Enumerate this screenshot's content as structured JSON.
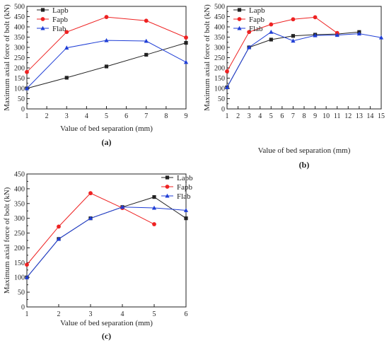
{
  "chart_data": [
    {
      "type": "line",
      "panel_label": "(a)",
      "xlabel": "Value of bed separation (mm)",
      "ylabel": "Maximum axial force of bolt (kN)",
      "xlim": [
        1,
        9
      ],
      "ylim": [
        0,
        500
      ],
      "xticks": [
        1,
        2,
        3,
        4,
        5,
        6,
        7,
        8,
        9
      ],
      "yticks": [
        0,
        50,
        100,
        150,
        200,
        250,
        300,
        350,
        400,
        450,
        500
      ],
      "legend_position": "top-left",
      "series": [
        {
          "name": "Lapb",
          "color": "#222222",
          "marker": "square",
          "x": [
            1,
            3,
            5,
            7,
            9
          ],
          "values": [
            100,
            152,
            207,
            264,
            322
          ]
        },
        {
          "name": "Fapb",
          "color": "#ee2222",
          "marker": "circle",
          "x": [
            1,
            3,
            5,
            7,
            9
          ],
          "values": [
            180,
            375,
            448,
            430,
            348
          ]
        },
        {
          "name": "Flab",
          "color": "#1f3ed6",
          "marker": "triangle",
          "x": [
            1,
            3,
            5,
            7,
            9
          ],
          "values": [
            100,
            298,
            334,
            331,
            228
          ]
        }
      ]
    },
    {
      "type": "line",
      "panel_label": "(b)",
      "xlabel": "Value of bed separation (mm)",
      "ylabel": "Maximum axial force of bolt (kN)",
      "xlim": [
        1,
        15
      ],
      "ylim": [
        0,
        500
      ],
      "xticks": [
        1,
        2,
        3,
        4,
        5,
        6,
        7,
        8,
        9,
        10,
        11,
        12,
        13,
        14,
        15
      ],
      "yticks": [
        0,
        50,
        100,
        150,
        200,
        250,
        300,
        350,
        400,
        450,
        500
      ],
      "legend_position": "top-left",
      "series": [
        {
          "name": "Lapb",
          "color": "#222222",
          "marker": "square",
          "x": [
            1,
            3,
            5,
            7,
            9,
            11,
            13
          ],
          "values": [
            105,
            300,
            338,
            356,
            362,
            365,
            375
          ]
        },
        {
          "name": "Fapb",
          "color": "#ee2222",
          "marker": "circle",
          "x": [
            1,
            3,
            5,
            7,
            9,
            11
          ],
          "values": [
            183,
            375,
            412,
            437,
            447,
            370
          ]
        },
        {
          "name": "Flab",
          "color": "#1f3ed6",
          "marker": "triangle",
          "x": [
            1,
            3,
            5,
            7,
            9,
            11,
            13,
            15
          ],
          "values": [
            105,
            300,
            375,
            332,
            358,
            360,
            367,
            348
          ]
        }
      ]
    },
    {
      "type": "line",
      "panel_label": "(c)",
      "xlabel": "Value of bed separation (mm)",
      "ylabel": "Maximum axial force of bolt (kN)",
      "xlim": [
        1,
        6
      ],
      "ylim": [
        0,
        450
      ],
      "xticks": [
        1,
        2,
        3,
        4,
        5,
        6
      ],
      "yticks": [
        0,
        50,
        100,
        150,
        200,
        250,
        300,
        350,
        400,
        450
      ],
      "legend_position": "top-right",
      "series": [
        {
          "name": "Lapb",
          "color": "#222222",
          "marker": "square",
          "x": [
            1,
            2,
            3,
            4,
            5,
            6
          ],
          "values": [
            100,
            230,
            300,
            338,
            372,
            300
          ]
        },
        {
          "name": "Fapb",
          "color": "#ee2222",
          "marker": "circle",
          "x": [
            1,
            2,
            3,
            4,
            5
          ],
          "values": [
            143,
            272,
            385,
            335,
            280
          ]
        },
        {
          "name": "Flab",
          "color": "#1f3ed6",
          "marker": "triangle",
          "x": [
            1,
            2,
            3,
            4,
            5,
            6
          ],
          "values": [
            100,
            230,
            300,
            338,
            335,
            327
          ]
        }
      ]
    }
  ]
}
